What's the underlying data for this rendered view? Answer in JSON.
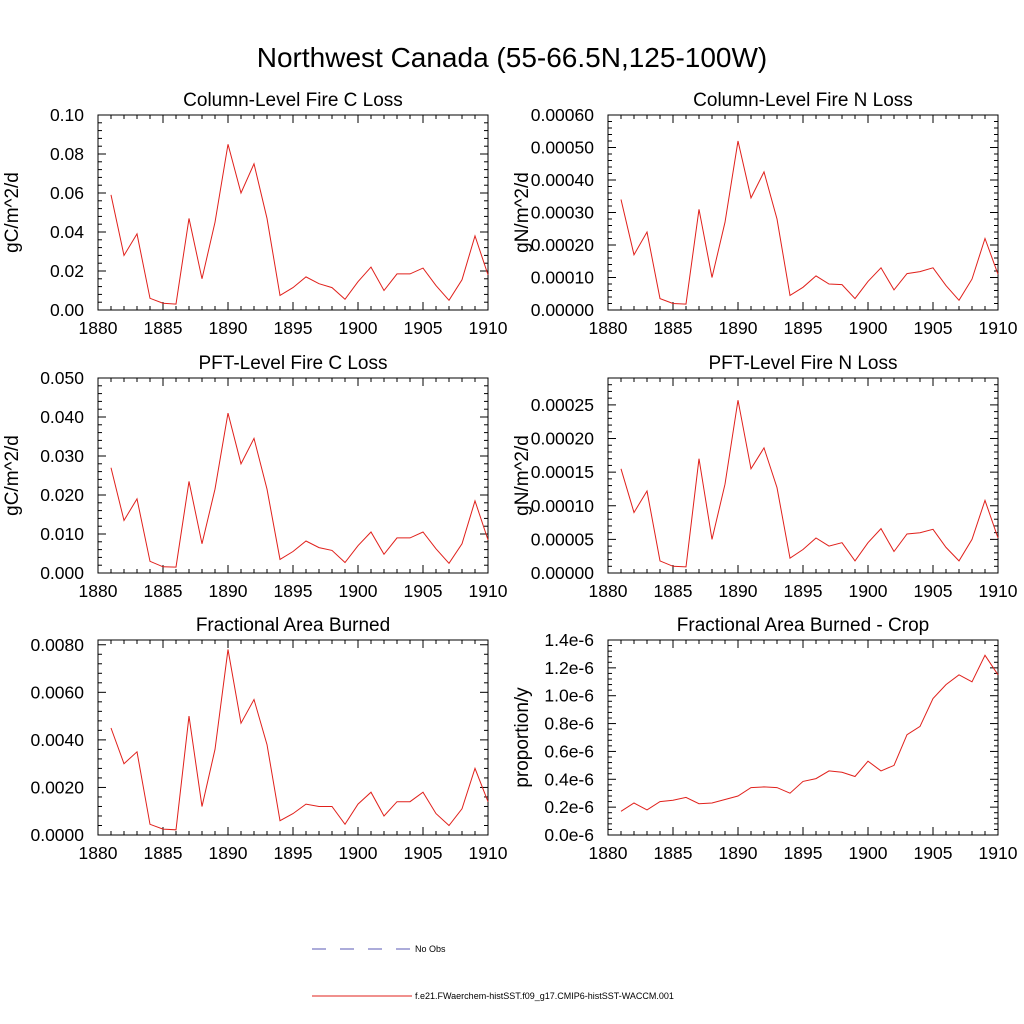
{
  "figure_title": "Northwest Canada (55-66.5N,125-100W)",
  "legend": {
    "entries": [
      {
        "label": "No Obs",
        "color": "#5a5ab4",
        "dash": "dashed"
      },
      {
        "label": "f.e21.FWaerchem-histSST.f09_g17.CMIP6-histSST-WACCM.001",
        "color": "#e0201b",
        "dash": "solid"
      }
    ]
  },
  "chart_data": [
    {
      "type": "line",
      "title": "Column-Level Fire C Loss",
      "ylabel": "gC/m^2/d",
      "xlabel": "",
      "xlim": [
        1880,
        1910
      ],
      "ylim": [
        0,
        0.1
      ],
      "x_ticks": [
        1880,
        1885,
        1890,
        1895,
        1900,
        1905,
        1910
      ],
      "y_ticks": [
        "0.00",
        "0.02",
        "0.04",
        "0.06",
        "0.08",
        "0.10"
      ],
      "x": [
        1881,
        1882,
        1883,
        1884,
        1885,
        1886,
        1887,
        1888,
        1889,
        1890,
        1891,
        1892,
        1893,
        1894,
        1895,
        1896,
        1897,
        1898,
        1899,
        1900,
        1901,
        1902,
        1903,
        1904,
        1905,
        1906,
        1907,
        1908,
        1909,
        1910
      ],
      "series": [
        {
          "color": "#e0201b",
          "values": [
            0.059,
            0.028,
            0.039,
            0.006,
            0.0035,
            0.003,
            0.047,
            0.016,
            0.045,
            0.085,
            0.06,
            0.075,
            0.047,
            0.0075,
            0.0115,
            0.017,
            0.0135,
            0.0115,
            0.0055,
            0.0145,
            0.022,
            0.01,
            0.0185,
            0.0185,
            0.0215,
            0.0125,
            0.005,
            0.0155,
            0.038,
            0.018
          ]
        }
      ]
    },
    {
      "type": "line",
      "title": "Column-Level Fire N Loss",
      "ylabel": "gN/m^2/d",
      "xlabel": "",
      "xlim": [
        1880,
        1910
      ],
      "ylim": [
        0,
        0.0006
      ],
      "x_ticks": [
        1880,
        1885,
        1890,
        1895,
        1900,
        1905,
        1910
      ],
      "y_ticks": [
        "0.00000",
        "0.00010",
        "0.00020",
        "0.00030",
        "0.00040",
        "0.00050",
        "0.00060"
      ],
      "x": [
        1881,
        1882,
        1883,
        1884,
        1885,
        1886,
        1887,
        1888,
        1889,
        1890,
        1891,
        1892,
        1893,
        1894,
        1895,
        1896,
        1897,
        1898,
        1899,
        1900,
        1901,
        1902,
        1903,
        1904,
        1905,
        1906,
        1907,
        1908,
        1909,
        1910
      ],
      "series": [
        {
          "color": "#e0201b",
          "values": [
            0.00034,
            0.00017,
            0.00024,
            3.5e-05,
            2e-05,
            1.8e-05,
            0.00031,
            0.0001,
            0.00027,
            0.00052,
            0.000345,
            0.000425,
            0.00028,
            4.5e-05,
            7e-05,
            0.000105,
            8e-05,
            7.8e-05,
            3.5e-05,
            8.8e-05,
            0.00013,
            6.2e-05,
            0.000112,
            0.000118,
            0.00013,
            7.5e-05,
            3e-05,
            9.5e-05,
            0.00022,
            0.00011
          ]
        }
      ]
    },
    {
      "type": "line",
      "title": "PFT-Level Fire C Loss",
      "ylabel": "gC/m^2/d",
      "xlabel": "",
      "xlim": [
        1880,
        1910
      ],
      "ylim": [
        0,
        0.05
      ],
      "x_ticks": [
        1880,
        1885,
        1890,
        1895,
        1900,
        1905,
        1910
      ],
      "y_ticks": [
        "0.000",
        "0.010",
        "0.020",
        "0.030",
        "0.040",
        "0.050"
      ],
      "x": [
        1881,
        1882,
        1883,
        1884,
        1885,
        1886,
        1887,
        1888,
        1889,
        1890,
        1891,
        1892,
        1893,
        1894,
        1895,
        1896,
        1897,
        1898,
        1899,
        1900,
        1901,
        1902,
        1903,
        1904,
        1905,
        1906,
        1907,
        1908,
        1909,
        1910
      ],
      "series": [
        {
          "color": "#e0201b",
          "values": [
            0.027,
            0.0135,
            0.019,
            0.003,
            0.0016,
            0.0015,
            0.0235,
            0.0075,
            0.0215,
            0.041,
            0.028,
            0.0345,
            0.0215,
            0.0035,
            0.0055,
            0.0082,
            0.0065,
            0.0058,
            0.0027,
            0.007,
            0.0105,
            0.0048,
            0.009,
            0.009,
            0.0105,
            0.0062,
            0.0025,
            0.0075,
            0.0185,
            0.0085
          ]
        }
      ]
    },
    {
      "type": "line",
      "title": "PFT-Level Fire N Loss",
      "ylabel": "gN/m^2/d",
      "xlabel": "",
      "xlim": [
        1880,
        1910
      ],
      "ylim": [
        0,
        0.00029
      ],
      "x_ticks": [
        1880,
        1885,
        1890,
        1895,
        1900,
        1905,
        1910
      ],
      "y_ticks": [
        "0.00000",
        "0.00005",
        "0.00010",
        "0.00015",
        "0.00020",
        "0.00025"
      ],
      "y_tick_values": [
        0,
        5e-05,
        0.0001,
        0.00015,
        0.0002,
        0.00025
      ],
      "x": [
        1881,
        1882,
        1883,
        1884,
        1885,
        1886,
        1887,
        1888,
        1889,
        1890,
        1891,
        1892,
        1893,
        1894,
        1895,
        1896,
        1897,
        1898,
        1899,
        1900,
        1901,
        1902,
        1903,
        1904,
        1905,
        1906,
        1907,
        1908,
        1909,
        1910
      ],
      "series": [
        {
          "color": "#e0201b",
          "values": [
            0.000155,
            9e-05,
            0.000122,
            1.8e-05,
            1e-05,
            9e-06,
            0.00017,
            5e-05,
            0.000132,
            0.000257,
            0.000155,
            0.000186,
            0.000127,
            2.2e-05,
            3.5e-05,
            5.2e-05,
            4e-05,
            4.5e-05,
            1.8e-05,
            4.5e-05,
            6.6e-05,
            3.2e-05,
            5.8e-05,
            6e-05,
            6.5e-05,
            3.8e-05,
            1.8e-05,
            5e-05,
            0.000108,
            5.2e-05
          ]
        }
      ]
    },
    {
      "type": "line",
      "title": "Fractional Area Burned",
      "ylabel": "",
      "xlabel": "",
      "xlim": [
        1880,
        1910
      ],
      "ylim": [
        0,
        0.0082
      ],
      "x_ticks": [
        1880,
        1885,
        1890,
        1895,
        1900,
        1905,
        1910
      ],
      "y_ticks": [
        "0.0000",
        "0.0020",
        "0.0040",
        "0.0060",
        "0.0080"
      ],
      "y_tick_values": [
        0,
        0.002,
        0.004,
        0.006,
        0.008
      ],
      "x": [
        1881,
        1882,
        1883,
        1884,
        1885,
        1886,
        1887,
        1888,
        1889,
        1890,
        1891,
        1892,
        1893,
        1894,
        1895,
        1896,
        1897,
        1898,
        1899,
        1900,
        1901,
        1902,
        1903,
        1904,
        1905,
        1906,
        1907,
        1908,
        1909,
        1910
      ],
      "series": [
        {
          "color": "#e0201b",
          "values": [
            0.0045,
            0.003,
            0.0035,
            0.00045,
            0.00025,
            0.00022,
            0.005,
            0.0012,
            0.0036,
            0.0078,
            0.0047,
            0.0057,
            0.0038,
            0.0006,
            0.0009,
            0.0013,
            0.0012,
            0.0012,
            0.00045,
            0.0013,
            0.0018,
            0.0008,
            0.0014,
            0.0014,
            0.0018,
            0.0009,
            0.0004,
            0.0011,
            0.0028,
            0.0014
          ]
        }
      ]
    },
    {
      "type": "line",
      "title": "Fractional Area Burned - Crop",
      "ylabel": "proportion/y",
      "xlabel": "",
      "xlim": [
        1880,
        1910
      ],
      "ylim": [
        0,
        1.4e-06
      ],
      "x_ticks": [
        1880,
        1885,
        1890,
        1895,
        1900,
        1905,
        1910
      ],
      "y_ticks": [
        "0.0e-6",
        "0.2e-6",
        "0.4e-6",
        "0.6e-6",
        "0.8e-6",
        "1.0e-6",
        "1.2e-6",
        "1.4e-6"
      ],
      "x": [
        1881,
        1882,
        1883,
        1884,
        1885,
        1886,
        1887,
        1888,
        1889,
        1890,
        1891,
        1892,
        1893,
        1894,
        1895,
        1896,
        1897,
        1898,
        1899,
        1900,
        1901,
        1902,
        1903,
        1904,
        1905,
        1906,
        1907,
        1908,
        1909,
        1910
      ],
      "series": [
        {
          "color": "#e0201b",
          "values": [
            1.7e-07,
            2.3e-07,
            1.8e-07,
            2.4e-07,
            2.5e-07,
            2.7e-07,
            2.25e-07,
            2.3e-07,
            2.55e-07,
            2.8e-07,
            3.4e-07,
            3.45e-07,
            3.4e-07,
            3e-07,
            3.85e-07,
            4.05e-07,
            4.6e-07,
            4.5e-07,
            4.2e-07,
            5.3e-07,
            4.6e-07,
            5e-07,
            7.2e-07,
            7.8e-07,
            9.8e-07,
            1.08e-06,
            1.15e-06,
            1.1e-06,
            1.29e-06,
            1.15e-06
          ]
        }
      ]
    }
  ]
}
